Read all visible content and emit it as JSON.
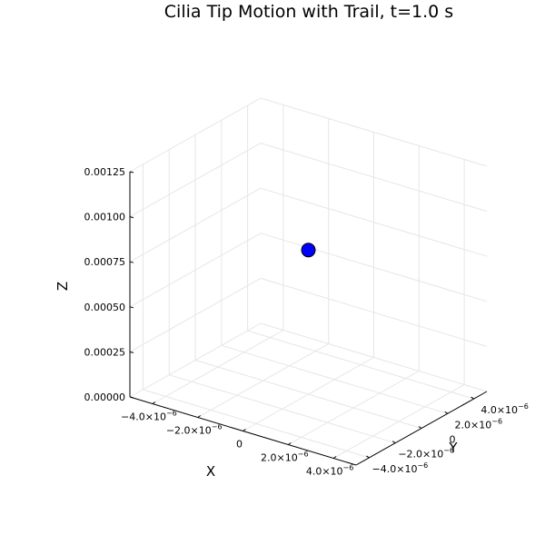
{
  "chart_data": {
    "type": "scatter",
    "title": "Cilia Tip Motion with Trail, t=1.0 s",
    "xlabel": "X",
    "ylabel": "Y",
    "zlabel": "Z",
    "xlim": [
      -5e-06,
      5e-06
    ],
    "ylim": [
      -5e-06,
      5e-06
    ],
    "zlim": [
      0,
      0.00125
    ],
    "x_ticks": [
      -4e-06,
      -2e-06,
      0,
      2e-06,
      4e-06
    ],
    "x_tick_labels": [
      {
        "mant": "−4.0×10",
        "exp": "−6"
      },
      {
        "mant": "−2.0×10",
        "exp": "−6"
      },
      {
        "mant": "0",
        "exp": ""
      },
      {
        "mant": "2.0×10",
        "exp": "−6"
      },
      {
        "mant": "4.0×10",
        "exp": "−6"
      }
    ],
    "y_ticks": [
      -4e-06,
      -2e-06,
      0,
      2e-06,
      4e-06
    ],
    "y_tick_labels": [
      {
        "mant": "−4.0×10",
        "exp": "−6"
      },
      {
        "mant": "−2.0×10",
        "exp": "−6"
      },
      {
        "mant": "0",
        "exp": ""
      },
      {
        "mant": "2.0×10",
        "exp": "−6"
      },
      {
        "mant": "4.0×10",
        "exp": "−6"
      }
    ],
    "z_ticks": [
      0,
      0.00025,
      0.0005,
      0.00075,
      0.001,
      0.00125
    ],
    "z_tick_labels": [
      "0.00000",
      "0.00025",
      "0.00050",
      "0.00075",
      "0.00100",
      "0.00125"
    ],
    "grid": true,
    "points": [
      {
        "x": 0,
        "y": 0,
        "z": 0.0008,
        "color": "#0000ff"
      }
    ],
    "marker_edge_color": "#000000"
  }
}
